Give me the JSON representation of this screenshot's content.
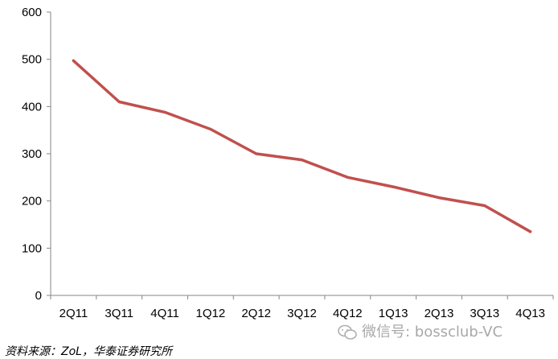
{
  "chart_data": {
    "type": "line",
    "categories": [
      "2Q11",
      "3Q11",
      "4Q11",
      "1Q12",
      "2Q12",
      "3Q12",
      "4Q12",
      "1Q13",
      "2Q13",
      "3Q13",
      "4Q13"
    ],
    "series": [
      {
        "values": [
          497,
          410,
          388,
          352,
          300,
          287,
          250,
          230,
          207,
          190,
          135
        ],
        "color": "#c0504d"
      }
    ],
    "title": "",
    "xlabel": "",
    "ylabel": "",
    "ylim": [
      0,
      600
    ],
    "yticks": [
      "0",
      "100",
      "200",
      "300",
      "400",
      "500",
      "600"
    ],
    "grid": false,
    "legend": "none"
  },
  "source_note": "资料来源：ZoL，华泰证券研究所",
  "watermark": {
    "text": "微信号: bossclub-VC",
    "icon": "wechat-icon"
  }
}
